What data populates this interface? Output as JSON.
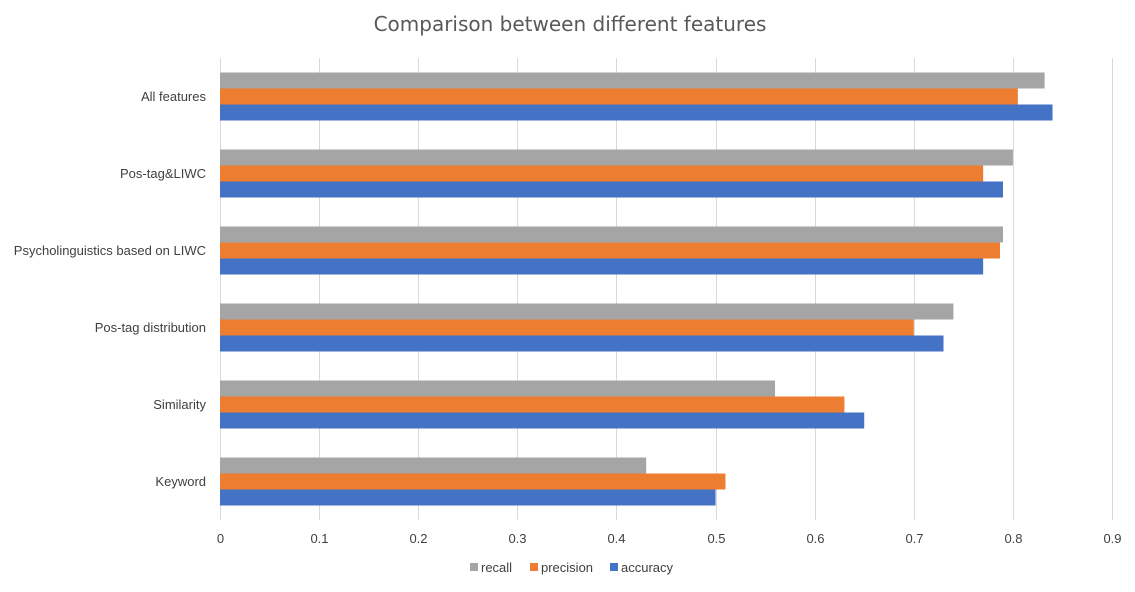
{
  "chart_data": {
    "type": "bar",
    "orientation": "horizontal",
    "title": "Comparison between different features",
    "xlabel": "",
    "ylabel": "",
    "xlim": [
      0,
      0.9
    ],
    "ticks": [
      "0",
      "0.1",
      "0.2",
      "0.3",
      "0.4",
      "0.5",
      "0.6",
      "0.7",
      "0.8",
      "0.9"
    ],
    "grid": true,
    "legend_position": "bottom",
    "categories": [
      "All features",
      "Pos-tag&LIWC",
      "Psycholinguistics based on LIWC",
      "Pos-tag distribution",
      "Similarity",
      "Keyword"
    ],
    "series": [
      {
        "name": "recall",
        "color": "#a5a5a5",
        "values": [
          0.832,
          0.8,
          0.79,
          0.74,
          0.56,
          0.43
        ]
      },
      {
        "name": "precision",
        "color": "#ed7d31",
        "values": [
          0.805,
          0.77,
          0.787,
          0.7,
          0.63,
          0.51
        ]
      },
      {
        "name": "accuracy",
        "color": "#4472c4",
        "values": [
          0.84,
          0.79,
          0.77,
          0.73,
          0.65,
          0.5
        ]
      }
    ]
  }
}
